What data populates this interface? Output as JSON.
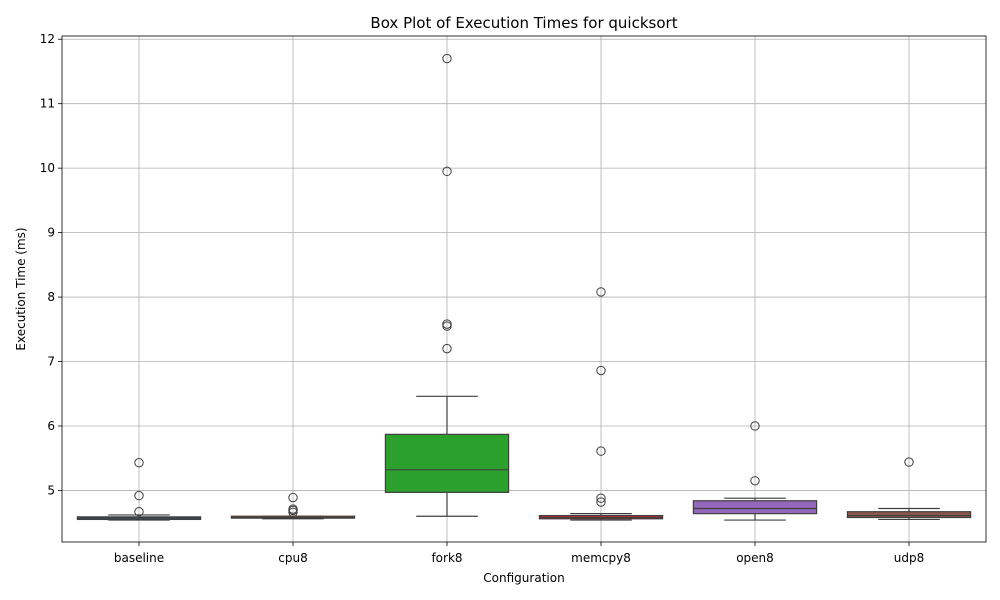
{
  "chart_data": {
    "type": "box",
    "title": "Box Plot of Execution Times for quicksort",
    "xlabel": "Configuration",
    "ylabel": "Execution Time (ms)",
    "ylim": [
      4.2,
      12.05
    ],
    "yticks": [
      5,
      6,
      7,
      8,
      9,
      10,
      11,
      12
    ],
    "grid": true,
    "categories": [
      "baseline",
      "cpu8",
      "fork8",
      "memcpy8",
      "open8",
      "udp8"
    ],
    "boxes": [
      {
        "name": "baseline",
        "color": "#1f77b4",
        "whisker_low": 4.54,
        "q1": 4.55,
        "median": 4.57,
        "q3": 4.59,
        "whisker_high": 4.62,
        "outliers": [
          5.43,
          4.92,
          4.67
        ]
      },
      {
        "name": "cpu8",
        "color": "#ff7f0e",
        "whisker_low": 4.56,
        "q1": 4.57,
        "median": 4.58,
        "q3": 4.6,
        "whisker_high": 4.6,
        "outliers": [
          4.89,
          4.71,
          4.69,
          4.66
        ]
      },
      {
        "name": "fork8",
        "color": "#2ca02c",
        "whisker_low": 4.6,
        "q1": 4.97,
        "median": 5.32,
        "q3": 5.87,
        "whisker_high": 6.46,
        "outliers": [
          11.7,
          9.95,
          7.58,
          7.55,
          7.2
        ]
      },
      {
        "name": "memcpy8",
        "color": "#d62728",
        "whisker_low": 4.54,
        "q1": 4.56,
        "median": 4.58,
        "q3": 4.61,
        "whisker_high": 4.64,
        "outliers": [
          8.08,
          6.86,
          5.61,
          4.88,
          4.82
        ]
      },
      {
        "name": "open8",
        "color": "#9467bd",
        "whisker_low": 4.54,
        "q1": 4.64,
        "median": 4.72,
        "q3": 4.84,
        "whisker_high": 4.88,
        "outliers": [
          6.0,
          5.15
        ]
      },
      {
        "name": "udp8",
        "color": "#8c564b",
        "whisker_low": 4.55,
        "q1": 4.58,
        "median": 4.61,
        "q3": 4.67,
        "whisker_high": 4.72,
        "outliers": [
          5.44
        ]
      }
    ]
  }
}
